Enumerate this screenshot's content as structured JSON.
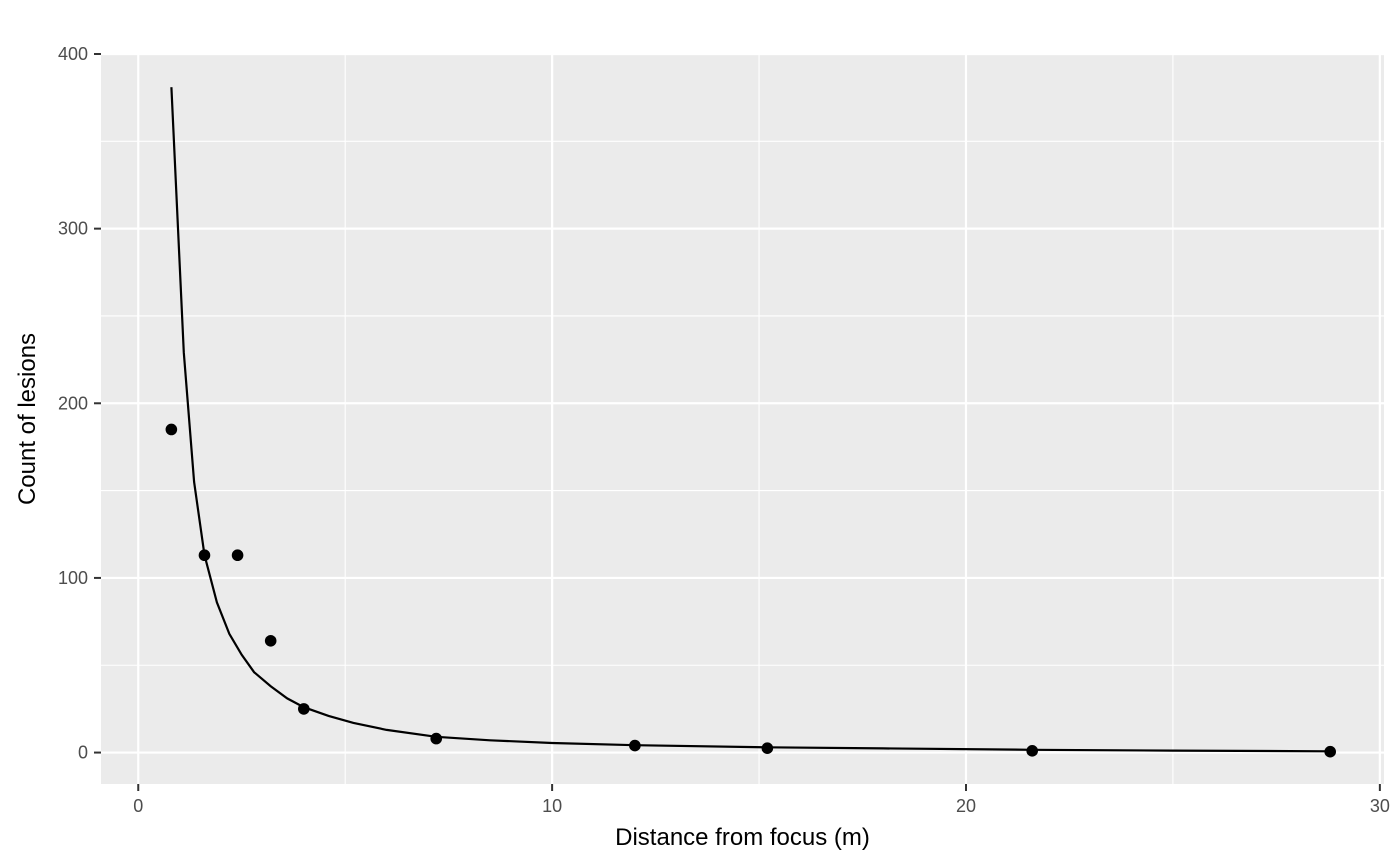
{
  "chart_data": {
    "type": "scatter",
    "title": "",
    "xlabel": "Distance from focus (m)",
    "ylabel": "Count of lesions",
    "xlim": [
      -0.9,
      30.1
    ],
    "ylim": [
      -18,
      400
    ],
    "x_ticks": [
      0,
      10,
      20,
      30
    ],
    "y_ticks": [
      0,
      100,
      200,
      300,
      400
    ],
    "x_tick_labels": [
      "0",
      "10",
      "20",
      "30"
    ],
    "y_tick_labels": [
      "0",
      "100",
      "200",
      "300",
      "400"
    ],
    "grid": true,
    "legend": "none",
    "colors": {
      "panel": "#ebebeb",
      "grid": "#ffffff",
      "marks": "#000000"
    },
    "series": [
      {
        "kind": "points",
        "x": [
          0.8,
          1.6,
          2.4,
          3.2,
          4.0,
          7.2,
          12.0,
          15.2,
          21.6,
          28.8
        ],
        "y": [
          185,
          113,
          113,
          64,
          25,
          8,
          4,
          2.5,
          1,
          0.5
        ]
      },
      {
        "kind": "fitted-line",
        "x": [
          0.8,
          1.1,
          1.35,
          1.6,
          1.9,
          2.2,
          2.5,
          2.8,
          3.2,
          3.6,
          4.0,
          4.6,
          5.2,
          6.0,
          7.2,
          8.5,
          10.0,
          12.0,
          15.2,
          18.0,
          21.6,
          25.0,
          28.8
        ],
        "y": [
          381,
          229,
          155,
          113,
          86,
          68,
          56,
          46,
          38,
          31,
          26,
          21,
          17,
          13,
          9,
          7,
          5.5,
          4.2,
          3.0,
          2.4,
          1.6,
          1.1,
          0.7
        ]
      }
    ]
  }
}
